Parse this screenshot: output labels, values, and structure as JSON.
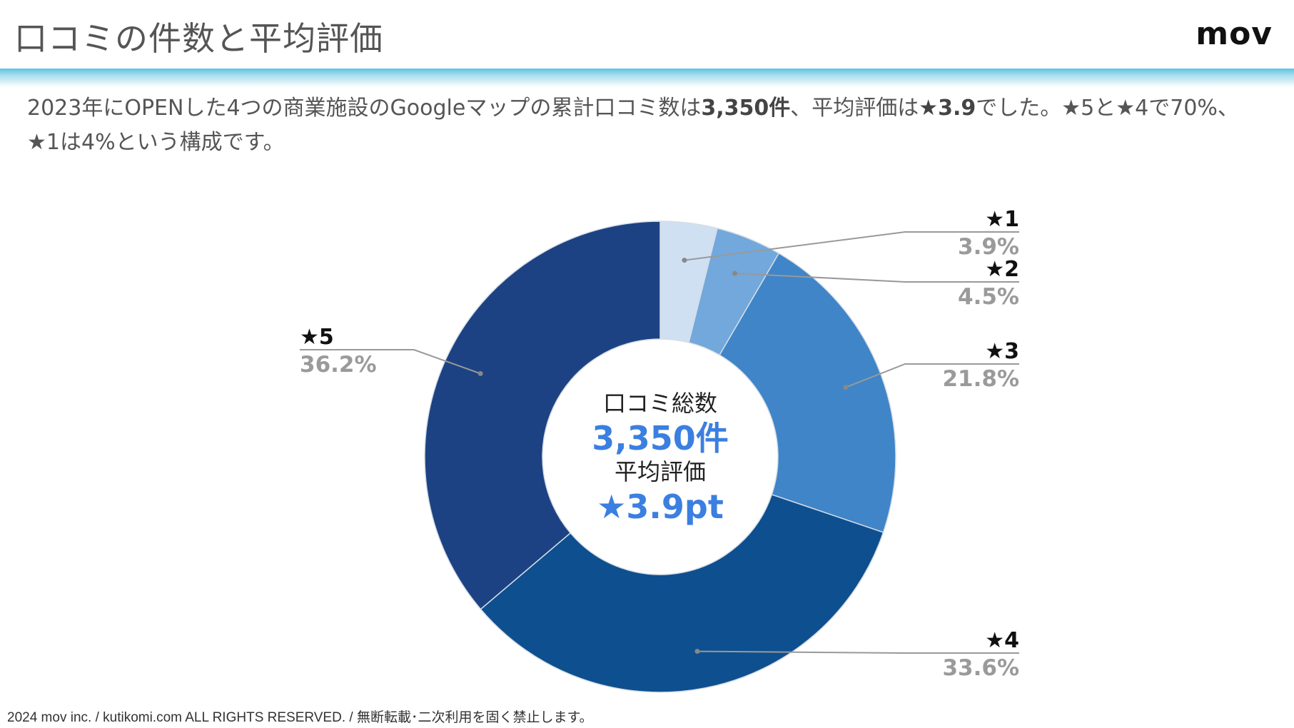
{
  "header": {
    "title": "口コミの件数と平均評価",
    "logo": "mov"
  },
  "summary": {
    "text_1": "2023年にOPENした4つの商業施設のGoogleマップの累計口コミ数は",
    "bold_1": "3,350件",
    "text_2": "、平均評価は",
    "bold_2": "★3.9",
    "text_3": "でした。★5と★4で70%、★1は4%という構成です。"
  },
  "chart_data": {
    "type": "pie",
    "variant": "donut",
    "categories": [
      "★1",
      "★2",
      "★3",
      "★4",
      "★5"
    ],
    "values": [
      3.9,
      4.5,
      21.8,
      33.6,
      36.2
    ],
    "value_labels": [
      "3.9%",
      "4.5%",
      "21.8%",
      "33.6%",
      "36.2%"
    ],
    "colors": [
      "#cfe0f2",
      "#72a8dc",
      "#3f85c8",
      "#0e4f8f",
      "#1c4283"
    ],
    "center": {
      "line1": "口コミ総数",
      "line2": "3,350件",
      "line3": "平均評価",
      "line4": "★3.9pt"
    },
    "accent_color": "#3b7fe0"
  },
  "footer": {
    "copyright": "2024 mov inc. / kutikomi.com ALL RIGHTS RESERVED. / 無断転載･二次利用を固く禁止します。"
  }
}
